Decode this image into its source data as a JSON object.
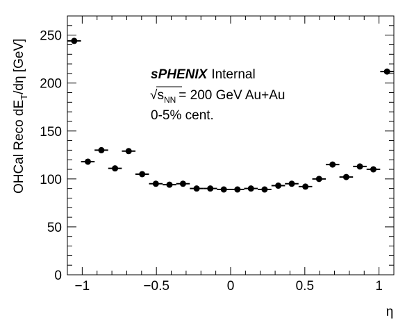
{
  "chart_data": {
    "type": "scatter",
    "title": "",
    "xlabel": "η",
    "ylabel": "OHCal Reco dE_T/dη [GeV]",
    "xlim": [
      -1.1,
      1.1
    ],
    "ylim": [
      0,
      270
    ],
    "xticks": [
      -1,
      -0.5,
      0,
      0.5,
      1
    ],
    "xtick_labels": [
      "−1",
      "−0.5",
      "0",
      "0.5",
      "1"
    ],
    "yticks": [
      0,
      50,
      100,
      150,
      200,
      250
    ],
    "ytick_labels": [
      "0",
      "50",
      "100",
      "150",
      "200",
      "250"
    ],
    "grid": false,
    "bin_half_width": 0.0458,
    "series": [
      {
        "x": [
          -1.054,
          -0.962,
          -0.871,
          -0.779,
          -0.687,
          -0.596,
          -0.504,
          -0.412,
          -0.321,
          -0.229,
          -0.137,
          -0.046,
          0.046,
          0.137,
          0.229,
          0.321,
          0.412,
          0.504,
          0.596,
          0.687,
          0.779,
          0.871,
          0.962,
          1.054
        ],
        "y": [
          244,
          118,
          130,
          111,
          129,
          105,
          95,
          94,
          95,
          90,
          90,
          89,
          89,
          90,
          89,
          93,
          95,
          92,
          100,
          115,
          102,
          113,
          110,
          212
        ]
      }
    ],
    "annotations": {
      "experiment": "sPHENIX",
      "status": "Internal",
      "energy_sqrt": "√",
      "energy_s": "s",
      "energy_sub": "NN",
      "energy_rest": "= 200 GeV Au+Au",
      "centrality": "0-5% cent."
    },
    "ylabel_parts": {
      "main": "OHCal Reco dE",
      "sub": "T",
      "tail": "/dη [GeV]"
    }
  }
}
